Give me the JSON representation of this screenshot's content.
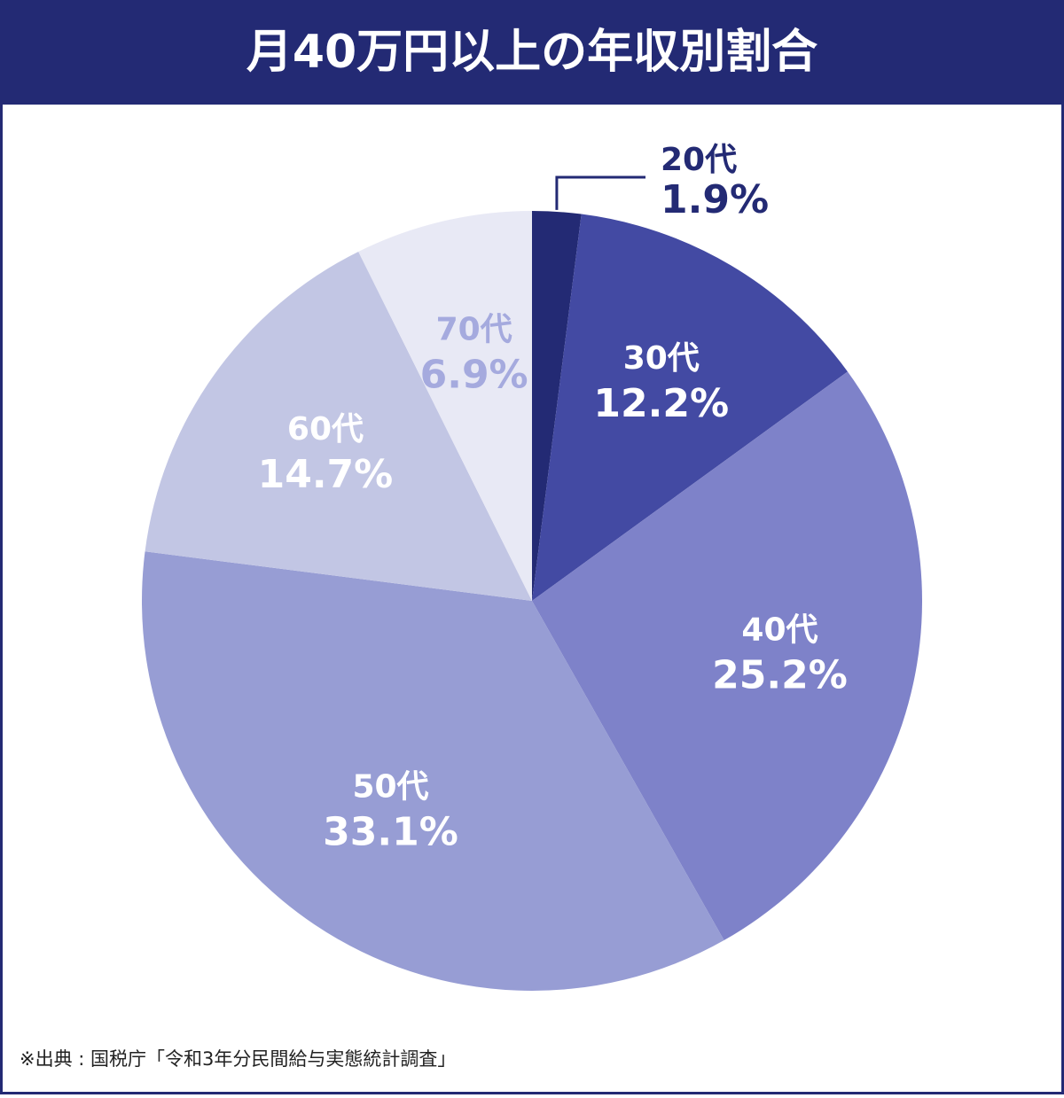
{
  "chart_data": {
    "type": "pie",
    "title": "月40万円以上の年収別割合",
    "categories": [
      "20代",
      "30代",
      "40代",
      "50代",
      "60代",
      "70代"
    ],
    "values": [
      1.9,
      12.2,
      25.2,
      33.1,
      14.7,
      6.9
    ],
    "value_labels": [
      "1.9%",
      "12.2%",
      "25.2%",
      "33.1%",
      "14.7%",
      "6.9%"
    ],
    "colors": [
      "#232a74",
      "#434aa3",
      "#7e82c9",
      "#979dd4",
      "#c2c6e4",
      "#e8e9f5"
    ],
    "label_colors": [
      "#232a74",
      "#ffffff",
      "#ffffff",
      "#ffffff",
      "#ffffff",
      "#a5aade"
    ],
    "source": "※出典 : 国税庁「令和3年分民間給与実態統計調査」"
  }
}
